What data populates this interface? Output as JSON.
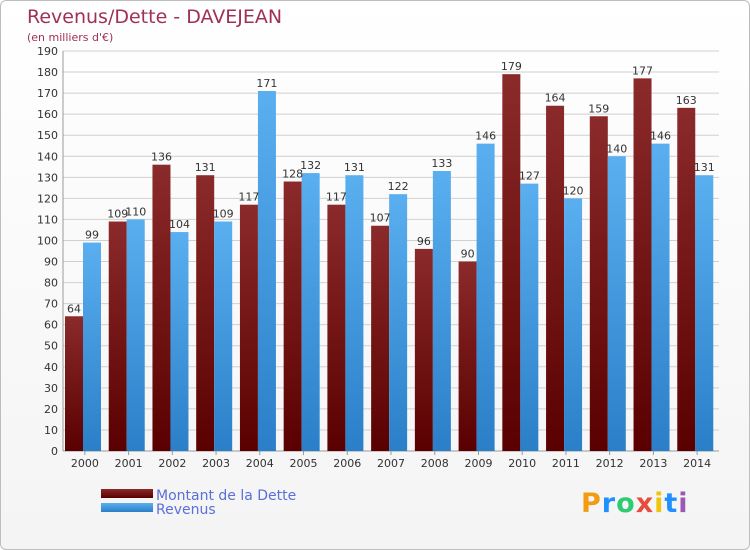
{
  "header": {
    "title": "Revenus/Dette - DAVEJEAN",
    "subtitle": "(en milliers d'€)"
  },
  "legend": [
    {
      "label": "Montant de la Dette",
      "color": "#8b1e1e"
    },
    {
      "label": "Revenus",
      "color": "#3f9fe6"
    }
  ],
  "branding": {
    "logo_letters": [
      "P",
      "r",
      "o",
      "x",
      "i",
      "t",
      "i"
    ],
    "logo_colors": [
      "#f39c12",
      "#1e90ff",
      "#2ecc71",
      "#e74c3c",
      "#f1c40f",
      "#1e90ff",
      "#9b59b6"
    ]
  },
  "colors": {
    "dette_top": "#8b2a2a",
    "dette_bottom": "#5a0000",
    "revenus_top": "#5aaff0",
    "revenus_bottom": "#2b7fc8",
    "grid": "#d0d0d0",
    "axis_text": "#333333",
    "value_text": "#333333"
  },
  "chart_data": {
    "type": "bar",
    "categories": [
      "2000",
      "2001",
      "2002",
      "2003",
      "2004",
      "2005",
      "2006",
      "2007",
      "2008",
      "2009",
      "2010",
      "2011",
      "2012",
      "2013",
      "2014"
    ],
    "series": [
      {
        "name": "Montant de la Dette",
        "values": [
          64,
          109,
          136,
          131,
          117,
          128,
          117,
          107,
          96,
          90,
          179,
          164,
          159,
          177,
          163
        ]
      },
      {
        "name": "Revenus",
        "values": [
          99,
          110,
          104,
          109,
          171,
          132,
          131,
          122,
          133,
          146,
          127,
          120,
          140,
          146,
          131
        ]
      }
    ],
    "ylim": [
      0,
      190
    ],
    "y_ticks": [
      0,
      10,
      20,
      30,
      40,
      50,
      60,
      70,
      80,
      90,
      100,
      110,
      120,
      130,
      140,
      150,
      160,
      170,
      180,
      190
    ],
    "grid": true,
    "legend_position": "bottom-left"
  }
}
